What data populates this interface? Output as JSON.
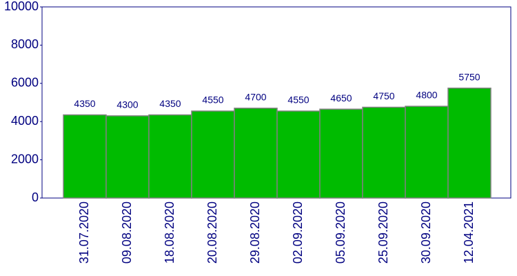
{
  "chart_data": {
    "type": "bar",
    "categories": [
      "31.07.2020",
      "09.08.2020",
      "18.08.2020",
      "20.08.2020",
      "29.08.2020",
      "02.09.2020",
      "05.09.2020",
      "25.09.2020",
      "30.09.2020",
      "12.04.2021"
    ],
    "values": [
      4350,
      4300,
      4350,
      4550,
      4700,
      4550,
      4650,
      4750,
      4800,
      5750
    ],
    "color": "#00bb00",
    "ylim": [
      0,
      10000
    ],
    "yticks": [
      0,
      2000,
      4000,
      6000,
      8000,
      10000
    ],
    "grid": false
  }
}
